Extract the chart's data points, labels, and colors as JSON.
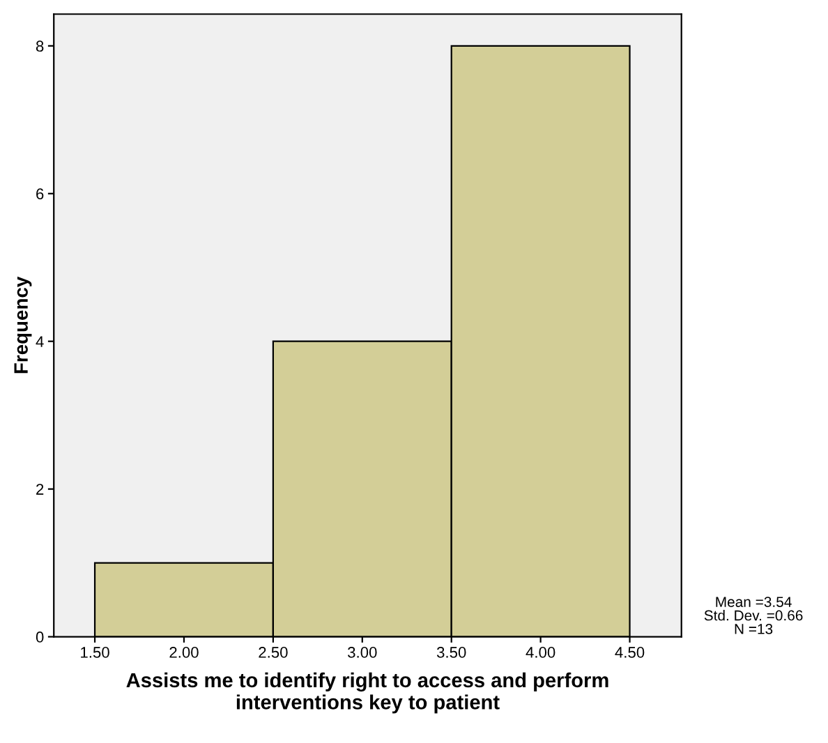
{
  "chart_data": {
    "type": "histogram",
    "xlabel": "Assists me to identify right to access and perform\ninterventions key to patient",
    "ylabel": "Frequency",
    "bins": [
      1.5,
      2.5,
      3.5,
      4.5
    ],
    "values": [
      1,
      4,
      8
    ],
    "color": "#d3ce97",
    "xlim": [
      1.27,
      4.79
    ],
    "xticks": [
      {
        "value": 1.5,
        "label": "1.50"
      },
      {
        "value": 2.0,
        "label": "2.00"
      },
      {
        "value": 2.5,
        "label": "2.50"
      },
      {
        "value": 3.0,
        "label": "3.00"
      },
      {
        "value": 3.5,
        "label": "3.50"
      },
      {
        "value": 4.0,
        "label": "4.00"
      },
      {
        "value": 4.5,
        "label": "4.50"
      }
    ],
    "ylim": [
      0,
      8.43
    ],
    "yticks": [
      0,
      2,
      4,
      6,
      8
    ],
    "grid": false,
    "annotations": [
      "Mean =3.54\nStd. Dev. =0.66\nN =13"
    ]
  }
}
